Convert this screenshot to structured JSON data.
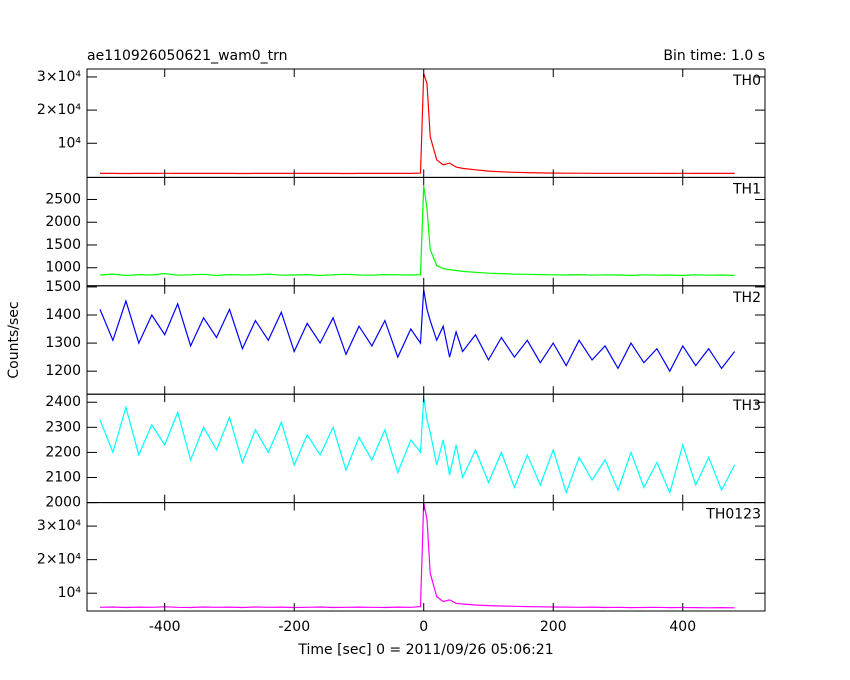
{
  "title": "ae110926050621_wam0_trn",
  "bin_time": "Bin time: 1.0 s",
  "y_label": "Counts/sec",
  "x_label": "Time [sec] 0 = 2011/09/26 05:06:21",
  "chart_data": [
    {
      "type": "line",
      "xlim": [
        -520,
        527
      ],
      "xticks": [
        -400,
        -200,
        0,
        200,
        400
      ],
      "ylim": [
        -300,
        32400
      ],
      "yticks": [
        {
          "value": 10000,
          "label": "10⁴"
        },
        {
          "value": 20000,
          "label": "2×10⁴"
        },
        {
          "value": 30000,
          "label": "3×10⁴"
        }
      ],
      "x": [
        -500,
        -480,
        -460,
        -440,
        -420,
        -400,
        -380,
        -360,
        -340,
        -320,
        -300,
        -280,
        -260,
        -240,
        -220,
        -200,
        -180,
        -160,
        -140,
        -120,
        -100,
        -80,
        -60,
        -40,
        -20,
        -5,
        0,
        5,
        10,
        20,
        30,
        40,
        50,
        60,
        80,
        100,
        120,
        140,
        160,
        180,
        200,
        220,
        240,
        260,
        280,
        300,
        320,
        340,
        360,
        380,
        400,
        420,
        440,
        460,
        480
      ],
      "series": [
        {
          "name": "TH0",
          "color": "#ff0000",
          "values": [
            900,
            920,
            890,
            910,
            900,
            930,
            905,
            895,
            915,
            900,
            910,
            890,
            920,
            905,
            900,
            895,
            910,
            900,
            915,
            890,
            905,
            900,
            910,
            895,
            905,
            1000,
            31000,
            28000,
            12000,
            5000,
            3500,
            4000,
            2800,
            2400,
            2000,
            1600,
            1400,
            1250,
            1150,
            1050,
            1000,
            980,
            960,
            950,
            940,
            930,
            935,
            925,
            930,
            920,
            925,
            915,
            920,
            910,
            915
          ]
        }
      ]
    },
    {
      "type": "line",
      "xlim": [
        -520,
        527
      ],
      "xticks": [
        -400,
        -200,
        0,
        200,
        400
      ],
      "ylim": [
        603,
        2985
      ],
      "yticks": [
        1000,
        1500,
        2000,
        2500
      ],
      "x": [
        -500,
        -480,
        -460,
        -440,
        -420,
        -400,
        -380,
        -360,
        -340,
        -320,
        -300,
        -280,
        -260,
        -240,
        -220,
        -200,
        -180,
        -160,
        -140,
        -120,
        -100,
        -80,
        -60,
        -40,
        -20,
        -5,
        0,
        5,
        10,
        20,
        30,
        40,
        50,
        60,
        80,
        100,
        120,
        140,
        160,
        180,
        200,
        220,
        240,
        260,
        280,
        300,
        320,
        340,
        360,
        380,
        400,
        420,
        440,
        460,
        480
      ],
      "series": [
        {
          "name": "TH1",
          "color": "#00ff00",
          "values": [
            840,
            860,
            830,
            850,
            840,
            870,
            835,
            845,
            855,
            830,
            850,
            840,
            845,
            860,
            835,
            840,
            850,
            830,
            845,
            855,
            840,
            835,
            850,
            845,
            840,
            850,
            2800,
            2300,
            1400,
            1050,
            980,
            960,
            940,
            920,
            900,
            880,
            870,
            860,
            855,
            850,
            845,
            840,
            850,
            835,
            845,
            840,
            830,
            845,
            835,
            840,
            830,
            845,
            835,
            840,
            830
          ]
        }
      ]
    },
    {
      "type": "line",
      "xlim": [
        -520,
        527
      ],
      "xticks": [
        -400,
        -200,
        0,
        200,
        400
      ],
      "ylim": [
        1118,
        1504
      ],
      "yticks": [
        1200,
        1300,
        1400,
        1500
      ],
      "x": [
        -500,
        -480,
        -460,
        -440,
        -420,
        -400,
        -380,
        -360,
        -340,
        -320,
        -300,
        -280,
        -260,
        -240,
        -220,
        -200,
        -180,
        -160,
        -140,
        -120,
        -100,
        -80,
        -60,
        -40,
        -20,
        -5,
        0,
        5,
        10,
        20,
        30,
        40,
        50,
        60,
        80,
        100,
        120,
        140,
        160,
        180,
        200,
        220,
        240,
        260,
        280,
        300,
        320,
        340,
        360,
        380,
        400,
        420,
        440,
        460,
        480
      ],
      "series": [
        {
          "name": "TH2",
          "color": "#0000ff",
          "values": [
            1420,
            1310,
            1450,
            1300,
            1400,
            1330,
            1440,
            1290,
            1390,
            1320,
            1420,
            1280,
            1380,
            1310,
            1410,
            1270,
            1370,
            1300,
            1390,
            1260,
            1360,
            1290,
            1380,
            1250,
            1350,
            1300,
            1490,
            1420,
            1380,
            1310,
            1360,
            1250,
            1340,
            1270,
            1330,
            1240,
            1320,
            1250,
            1310,
            1230,
            1300,
            1220,
            1310,
            1240,
            1290,
            1210,
            1300,
            1230,
            1280,
            1200,
            1290,
            1220,
            1280,
            1210,
            1270
          ]
        }
      ]
    },
    {
      "type": "line",
      "xlim": [
        -520,
        527
      ],
      "xticks": [
        -400,
        -200,
        0,
        200,
        400
      ],
      "ylim": [
        2000,
        2432
      ],
      "yticks": [
        2000,
        2100,
        2200,
        2300,
        2400
      ],
      "x": [
        -500,
        -480,
        -460,
        -440,
        -420,
        -400,
        -380,
        -360,
        -340,
        -320,
        -300,
        -280,
        -260,
        -240,
        -220,
        -200,
        -180,
        -160,
        -140,
        -120,
        -100,
        -80,
        -60,
        -40,
        -20,
        -5,
        0,
        5,
        10,
        20,
        30,
        40,
        50,
        60,
        80,
        100,
        120,
        140,
        160,
        180,
        200,
        220,
        240,
        260,
        280,
        300,
        320,
        340,
        360,
        380,
        400,
        420,
        440,
        460,
        480
      ],
      "series": [
        {
          "name": "TH3",
          "color": "#00ffff",
          "values": [
            2330,
            2200,
            2380,
            2190,
            2310,
            2230,
            2360,
            2170,
            2300,
            2210,
            2340,
            2160,
            2290,
            2200,
            2320,
            2150,
            2270,
            2190,
            2300,
            2130,
            2260,
            2170,
            2290,
            2120,
            2250,
            2200,
            2420,
            2330,
            2280,
            2150,
            2250,
            2110,
            2230,
            2100,
            2210,
            2080,
            2200,
            2060,
            2190,
            2070,
            2210,
            2040,
            2180,
            2090,
            2170,
            2050,
            2200,
            2060,
            2160,
            2040,
            2230,
            2070,
            2180,
            2050,
            2150
          ]
        }
      ]
    },
    {
      "type": "line",
      "xlim": [
        -520,
        527
      ],
      "xticks": [
        -400,
        -200,
        0,
        200,
        400
      ],
      "ylim": [
        4700,
        37000
      ],
      "yticks": [
        {
          "value": 10000,
          "label": "10⁴"
        },
        {
          "value": 20000,
          "label": "2×10⁴"
        },
        {
          "value": 30000,
          "label": "3×10⁴"
        }
      ],
      "x": [
        -500,
        -480,
        -460,
        -440,
        -420,
        -400,
        -380,
        -360,
        -340,
        -320,
        -300,
        -280,
        -260,
        -240,
        -220,
        -200,
        -180,
        -160,
        -140,
        -120,
        -100,
        -80,
        -60,
        -40,
        -20,
        -5,
        0,
        5,
        10,
        20,
        30,
        40,
        50,
        60,
        80,
        100,
        120,
        140,
        160,
        180,
        200,
        220,
        240,
        260,
        280,
        300,
        320,
        340,
        360,
        380,
        400,
        420,
        440,
        460,
        480
      ],
      "series": [
        {
          "name": "TH0123",
          "color": "#ff00ff",
          "values": [
            5800,
            5900,
            5750,
            5850,
            5800,
            5950,
            5800,
            5750,
            5900,
            5800,
            5850,
            5750,
            5900,
            5800,
            5850,
            5750,
            5800,
            5900,
            5750,
            5800,
            5850,
            5800,
            5750,
            5850,
            5800,
            6000,
            37000,
            32000,
            16000,
            9000,
            7500,
            8000,
            7000,
            6800,
            6500,
            6300,
            6200,
            6100,
            6000,
            5950,
            5900,
            5850,
            5800,
            5850,
            5750,
            5800,
            5700,
            5750,
            5800,
            5700,
            5750,
            5700,
            5650,
            5700,
            5650
          ]
        }
      ]
    }
  ]
}
